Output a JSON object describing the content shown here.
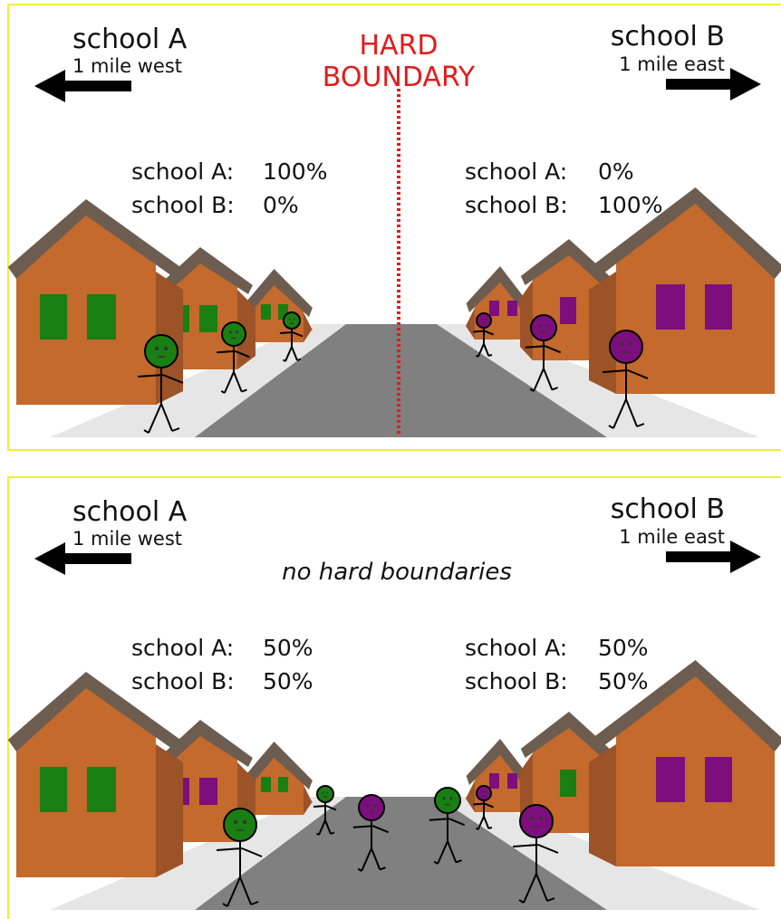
{
  "panels": [
    {
      "school_a": {
        "name": "school A",
        "distance": "1 mile west"
      },
      "school_b": {
        "name": "school B",
        "distance": "1 mile east"
      },
      "boundary": [
        "HARD",
        "BOUNDARY"
      ],
      "left_shares": [
        {
          "label": "school A:",
          "value": "100%"
        },
        {
          "label": "school B:",
          "value": "0%"
        }
      ],
      "right_shares": [
        {
          "label": "school A:",
          "value": "0%"
        },
        {
          "label": "school B:",
          "value": "100%"
        }
      ]
    },
    {
      "school_a": {
        "name": "school A",
        "distance": "1 mile west"
      },
      "school_b": {
        "name": "school B",
        "distance": "1 mile east"
      },
      "note": "no hard boundaries",
      "left_shares": [
        {
          "label": "school A:",
          "value": "50%"
        },
        {
          "label": "school B:",
          "value": "50%"
        }
      ],
      "right_shares": [
        {
          "label": "school A:",
          "value": "50%"
        },
        {
          "label": "school B:",
          "value": "50%"
        }
      ]
    }
  ]
}
